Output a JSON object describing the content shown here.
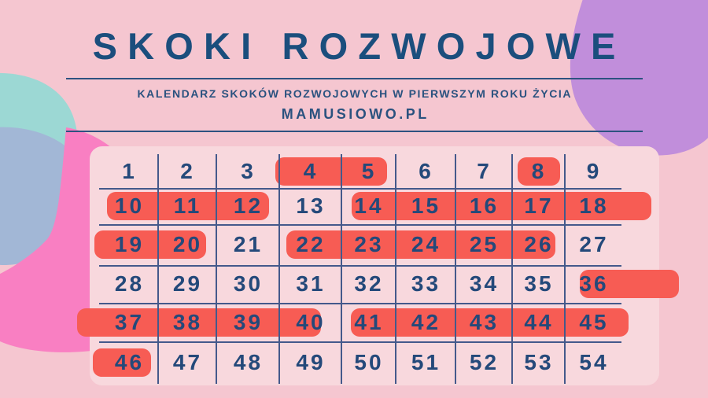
{
  "header": {
    "title": "SKOKI ROZWOJOWE",
    "subtitle": "KALENDARZ SKOKÓW ROZWOJOWYCH W PIERWSZYM ROKU ŻYCIA",
    "site": "MAMUSIOWO.PL"
  },
  "chart_data": {
    "type": "table",
    "title": "SKOKI ROZWOJOWE",
    "subtitle": "KALENDARZ SKOKÓW ROZWOJOWYCH W PIERWSZYM ROKU ŻYCIA",
    "source": "MAMUSIOWO.PL",
    "rows": [
      [
        1,
        2,
        3,
        4,
        5,
        6,
        7,
        8,
        9
      ],
      [
        10,
        11,
        12,
        13,
        14,
        15,
        16,
        17,
        18
      ],
      [
        19,
        20,
        21,
        22,
        23,
        24,
        25,
        26,
        27
      ],
      [
        28,
        29,
        30,
        31,
        32,
        33,
        34,
        35,
        36
      ],
      [
        37,
        38,
        39,
        40,
        41,
        42,
        43,
        44,
        45
      ],
      [
        46,
        47,
        48,
        49,
        50,
        51,
        52,
        53,
        54
      ]
    ],
    "highlighted_numbers": [
      4,
      5,
      8,
      10,
      11,
      12,
      14,
      15,
      16,
      17,
      18,
      19,
      20,
      22,
      23,
      24,
      25,
      26,
      36,
      37,
      38,
      39,
      40,
      41,
      42,
      43,
      44,
      45,
      46
    ],
    "highlight_spans": [
      {
        "row": 1,
        "from": 4,
        "to": 5
      },
      {
        "row": 1,
        "from": 8,
        "to": 8
      },
      {
        "row": 2,
        "from": 10,
        "to": 12
      },
      {
        "row": 2,
        "from": 14,
        "to": 18
      },
      {
        "row": 3,
        "from": 19,
        "to": 20
      },
      {
        "row": 3,
        "from": 22,
        "to": 26
      },
      {
        "row": 4,
        "from": 36,
        "to": 36
      },
      {
        "row": 5,
        "from": 37,
        "to": 40
      },
      {
        "row": 5,
        "from": 41,
        "to": 45
      },
      {
        "row": 6,
        "from": 46,
        "to": 46
      }
    ],
    "legend": "highlighted = coral red block, plain = no block",
    "grid": true
  },
  "colors": {
    "background": "#f5c6d0",
    "panel": "#f8d8dd",
    "highlight_red": "#f75c54",
    "text_navy": "#1b4e7d",
    "grid_line": "#44598b",
    "blob_teal": "#9cd8d4",
    "blob_slate": "#a2b7d6",
    "blob_pink": "#f97fc2",
    "blob_purple": "#c18edb"
  }
}
